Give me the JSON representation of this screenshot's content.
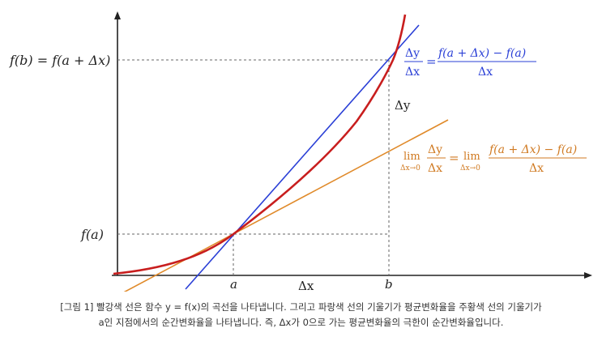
{
  "labels": {
    "fb": "f(b) = f(a + Δx)",
    "fa": "f(a)",
    "a": "a",
    "b": "b",
    "dx": "Δx",
    "dy": "Δy"
  },
  "secant": {
    "num": "Δy",
    "den": "Δx",
    "eq": "=",
    "rhs_num": "f(a + Δx) − f(a)",
    "rhs_den": "Δx"
  },
  "tangent": {
    "lim": "lim",
    "sub": "Δx→0",
    "num": "Δy",
    "den": "Δx",
    "eq": "=",
    "lim2": "lim",
    "sub2": "Δx→0",
    "rhs_num": "f(a + Δx) − f(a)",
    "rhs_den": "Δx"
  },
  "caption": {
    "line1": "[그림 1] 빨강색 선은 함수 y = f(x)의 곡선을 나타냅니다. 그리고 파랑색 선의 기울기가 평균변화율을 주황색 선의 기울기가",
    "line2": "a인 지점에서의 순간변화율을 나타냅니다. 즉, Δx가 0으로 가는 평균변화율의 극한이 순간변화율입니다."
  },
  "colors": {
    "curve": "#c81e1e",
    "secant": "#2a3fd6",
    "tangent": "#e08a2a",
    "axis": "#222222",
    "guide": "#666666"
  }
}
